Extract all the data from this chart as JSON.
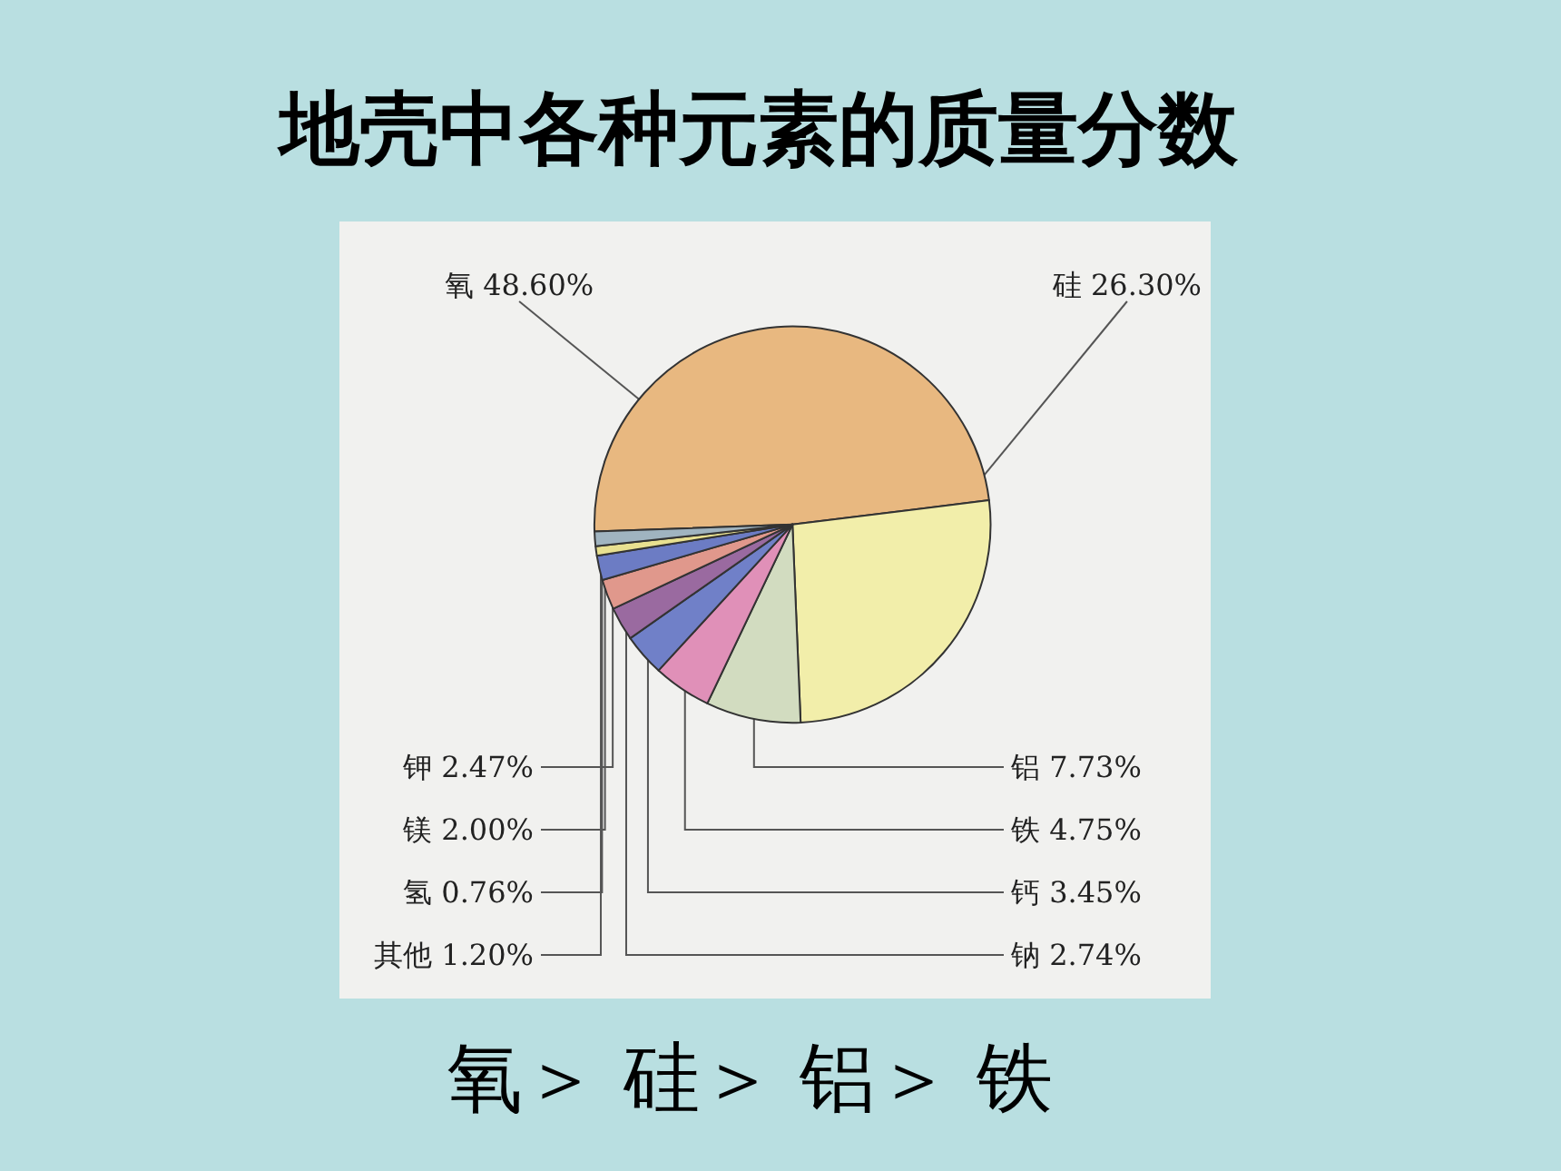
{
  "chart_data": {
    "type": "pie",
    "title": "地壳中各种元素的质量分数",
    "categories": [
      "氧",
      "硅",
      "铝",
      "铁",
      "钙",
      "钠",
      "钾",
      "镁",
      "氢",
      "其他"
    ],
    "values": [
      48.6,
      26.3,
      7.73,
      4.75,
      3.45,
      2.74,
      2.47,
      2.0,
      0.76,
      1.2
    ],
    "value_labels": [
      "48.60%",
      "26.30%",
      "7.73%",
      "4.75%",
      "3.45%",
      "2.74%",
      "2.47%",
      "2.00%",
      "0.76%",
      "1.20%"
    ],
    "colors": [
      "#e8b880",
      "#f2eeaa",
      "#d2dcc0",
      "#e090b8",
      "#7080c8",
      "#9a6aa0",
      "#e0988c",
      "#6c7cc4",
      "#e8e090",
      "#a0b4c0"
    ],
    "annotations": [
      "氧＞ 硅＞ 铝＞ 铁"
    ]
  }
}
